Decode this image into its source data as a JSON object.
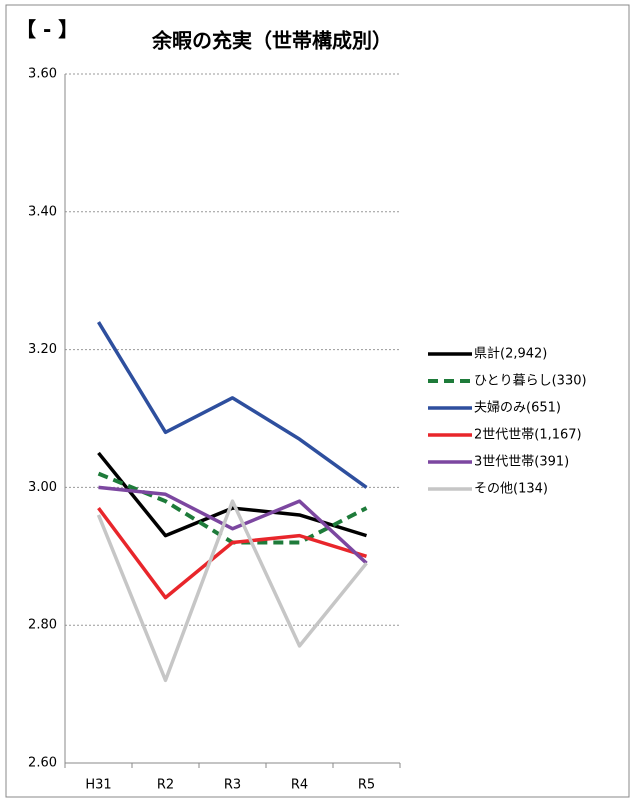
{
  "corner_label": "【 - 】",
  "chart_data": {
    "type": "line",
    "title": "余暇の充実（世帯構成別）",
    "categories": [
      "H31",
      "R2",
      "R3",
      "R4",
      "R5"
    ],
    "series": [
      {
        "name": "県計(2,942)",
        "color": "#000000",
        "dash": false,
        "values": [
          3.05,
          2.93,
          2.97,
          2.96,
          2.93
        ]
      },
      {
        "name": "ひとり暮らし(330)",
        "color": "#1e7b3a",
        "dash": true,
        "values": [
          3.02,
          2.98,
          2.92,
          2.92,
          2.97
        ]
      },
      {
        "name": "夫婦のみ(651)",
        "color": "#2e4f9e",
        "dash": false,
        "values": [
          3.24,
          3.08,
          3.13,
          3.07,
          3.0
        ]
      },
      {
        "name": "2世代世帯(1,167)",
        "color": "#e8262b",
        "dash": false,
        "values": [
          2.97,
          2.84,
          2.92,
          2.93,
          2.9
        ]
      },
      {
        "name": "3世代世帯(391)",
        "color": "#7c47a0",
        "dash": false,
        "values": [
          3.0,
          2.99,
          2.94,
          2.98,
          2.89
        ]
      },
      {
        "name": "その他(134)",
        "color": "#c6c6c6",
        "dash": false,
        "values": [
          2.96,
          2.72,
          2.98,
          2.77,
          2.89
        ]
      }
    ],
    "ylim": [
      2.6,
      3.6
    ],
    "yticks": [
      {
        "value": 2.6,
        "label": "2.60"
      },
      {
        "value": 2.8,
        "label": "2.80"
      },
      {
        "value": 3.0,
        "label": "3.00"
      },
      {
        "value": 3.2,
        "label": "3.20"
      },
      {
        "value": 3.4,
        "label": "3.40"
      },
      {
        "value": 3.6,
        "label": "3.60"
      }
    ],
    "grid": true,
    "legend": "right"
  }
}
